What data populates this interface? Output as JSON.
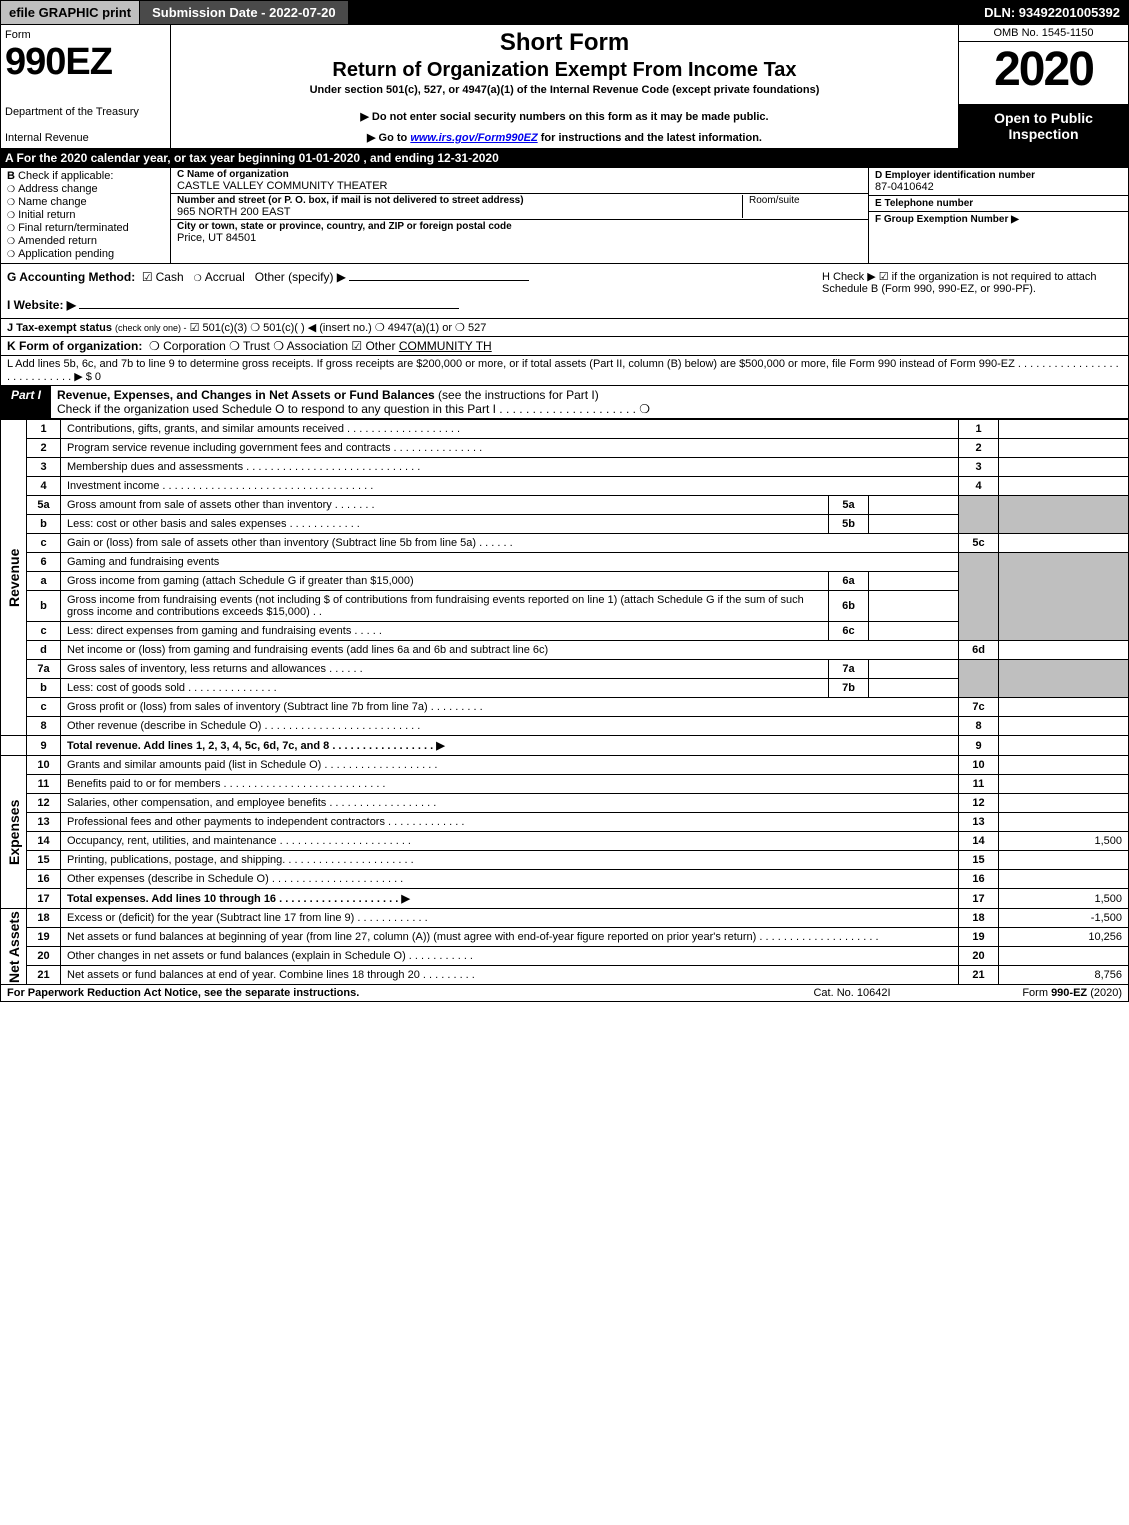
{
  "topbar": {
    "efile": "efile GRAPHIC print",
    "submission": "Submission Date - 2022-07-20",
    "dln": "DLN: 93492201005392"
  },
  "header": {
    "form_word": "Form",
    "form_number": "990EZ",
    "dept": "Department of the Treasury",
    "irs": "Internal Revenue",
    "short_form": "Short Form",
    "return_exempt": "Return of Organization Exempt From Income Tax",
    "under": "Under section 501(c), 527, or 4947(a)(1) of the Internal Revenue Code (except private foundations)",
    "ssn_warning": "▶ Do not enter social security numbers on this form as it may be made public.",
    "goto_pre": "▶ Go to ",
    "goto_link": "www.irs.gov/Form990EZ",
    "goto_post": " for instructions and the latest information.",
    "omb": "OMB No. 1545-1150",
    "year": "2020",
    "open": "Open to Public Inspection"
  },
  "row_a": "A   For the 2020 calendar year, or tax year beginning 01-01-2020 , and ending 12-31-2020",
  "section_b": {
    "label": "B",
    "check_if": "Check if applicable:",
    "opts": [
      "Address change",
      "Name change",
      "Initial return",
      "Final return/terminated",
      "Amended return",
      "Application pending"
    ]
  },
  "section_c": {
    "c_label": "C Name of organization",
    "c_name": "CASTLE VALLEY COMMUNITY THEATER",
    "addr_label": "Number and street (or P. O. box, if mail is not delivered to street address)",
    "addr_val": "965 NORTH 200 EAST",
    "room_label": "Room/suite",
    "city_label": "City or town, state or province, country, and ZIP or foreign postal code",
    "city_val": "Price, UT  84501"
  },
  "section_def": {
    "d_label": "D Employer identification number",
    "d_val": "87-0410642",
    "e_label": "E Telephone number",
    "f_label": "F Group Exemption Number   ▶"
  },
  "g": {
    "label": "G Accounting Method:",
    "cash": "Cash",
    "accrual": "Accrual",
    "other": "Other (specify) ▶",
    "h_text": "H  Check ▶ ☑ if the organization is not required to attach Schedule B (Form 990, 990-EZ, or 990-PF)."
  },
  "i": {
    "label": "I Website: ▶"
  },
  "j": {
    "label": "J Tax-exempt status",
    "sub": "(check only one) -",
    "opts": "☑ 501(c)(3)  ❍ 501(c)(  ) ◀ (insert no.)  ❍ 4947(a)(1) or  ❍ 527"
  },
  "k": {
    "label": "K Form of organization:",
    "opts": "❍ Corporation   ❍ Trust   ❍ Association   ☑ Other",
    "other_val": "COMMUNITY TH"
  },
  "l": {
    "text": "L Add lines 5b, 6c, and 7b to line 9 to determine gross receipts. If gross receipts are $200,000 or more, or if total assets (Part II, column (B) below) are $500,000 or more, file Form 990 instead of Form 990-EZ  .  .  .  .  .  .  .  .  .  .  .  .  .  .  .  .  .  .  .  .  .  .  .  .  .  .  .  .  ▶ $ 0"
  },
  "part1": {
    "label": "Part I",
    "title": "Revenue, Expenses, and Changes in Net Assets or Fund Balances",
    "title_sub": "(see the instructions for Part I)",
    "check_line": "Check if the organization used Schedule O to respond to any question in this Part I  .  .  .  .  .  .  .  .  .  .  .  .  .  .  .  .  .  .  .  .  .  ❍"
  },
  "side_labels": {
    "revenue": "Revenue",
    "expenses": "Expenses",
    "netassets": "Net Assets"
  },
  "lines": {
    "l1": {
      "no": "1",
      "desc": "Contributions, gifts, grants, and similar amounts received  .  .  .  .  .  .  .  .  .  .  .  .  .  .  .  .  .  .  .",
      "r": "1"
    },
    "l2": {
      "no": "2",
      "desc": "Program service revenue including government fees and contracts  .  .  .  .  .  .  .  .  .  .  .  .  .  .  .",
      "r": "2"
    },
    "l3": {
      "no": "3",
      "desc": "Membership dues and assessments  .  .  .  .  .  .  .  .  .  .  .  .  .  .  .  .  .  .  .  .  .  .  .  .  .  .  .  .  .",
      "r": "3"
    },
    "l4": {
      "no": "4",
      "desc": "Investment income  .  .  .  .  .  .  .  .  .  .  .  .  .  .  .  .  .  .  .  .  .  .  .  .  .  .  .  .  .  .  .  .  .  .  .",
      "r": "4"
    },
    "l5a": {
      "no": "5a",
      "desc": "Gross amount from sale of assets other than inventory  .  .  .  .  .  .  .",
      "sub": "5a"
    },
    "l5b": {
      "no": "b",
      "desc": "Less: cost or other basis and sales expenses  .  .  .  .  .  .  .  .  .  .  .  .",
      "sub": "5b"
    },
    "l5c": {
      "no": "c",
      "desc": "Gain or (loss) from sale of assets other than inventory (Subtract line 5b from line 5a)  .  .  .  .  .  .",
      "r": "5c"
    },
    "l6": {
      "no": "6",
      "desc": "Gaming and fundraising events"
    },
    "l6a": {
      "no": "a",
      "desc": "Gross income from gaming (attach Schedule G if greater than $15,000)",
      "sub": "6a"
    },
    "l6b": {
      "no": "b",
      "desc": "Gross income from fundraising events (not including $                    of contributions from fundraising events reported on line 1) (attach Schedule G if the sum of such gross income and contributions exceeds $15,000)   .  .",
      "sub": "6b"
    },
    "l6c": {
      "no": "c",
      "desc": "Less: direct expenses from gaming and fundraising events   .  .  .  .  .",
      "sub": "6c"
    },
    "l6d": {
      "no": "d",
      "desc": "Net income or (loss) from gaming and fundraising events (add lines 6a and 6b and subtract line 6c)",
      "r": "6d"
    },
    "l7a": {
      "no": "7a",
      "desc": "Gross sales of inventory, less returns and allowances  .  .  .  .  .  .",
      "sub": "7a"
    },
    "l7b": {
      "no": "b",
      "desc": "Less: cost of goods sold      .  .  .  .  .  .  .  .  .  .  .  .  .  .  .",
      "sub": "7b"
    },
    "l7c": {
      "no": "c",
      "desc": "Gross profit or (loss) from sales of inventory (Subtract line 7b from line 7a)  .  .  .  .  .  .  .  .  .",
      "r": "7c"
    },
    "l8": {
      "no": "8",
      "desc": "Other revenue (describe in Schedule O)  .  .  .  .  .  .  .  .  .  .  .  .  .  .  .  .  .  .  .  .  .  .  .  .  .  .",
      "r": "8"
    },
    "l9": {
      "no": "9",
      "desc": "Total revenue. Add lines 1, 2, 3, 4, 5c, 6d, 7c, and 8  .  .  .  .  .  .  .  .  .  .  .  .  .  .  .  .  .  ▶",
      "r": "9"
    },
    "l10": {
      "no": "10",
      "desc": "Grants and similar amounts paid (list in Schedule O)  .  .  .  .  .  .  .  .  .  .  .  .  .  .  .  .  .  .  .",
      "r": "10"
    },
    "l11": {
      "no": "11",
      "desc": "Benefits paid to or for members   .  .  .  .  .  .  .  .  .  .  .  .  .  .  .  .  .  .  .  .  .  .  .  .  .  .  .",
      "r": "11"
    },
    "l12": {
      "no": "12",
      "desc": "Salaries, other compensation, and employee benefits  .  .  .  .  .  .  .  .  .  .  .  .  .  .  .  .  .  .",
      "r": "12"
    },
    "l13": {
      "no": "13",
      "desc": "Professional fees and other payments to independent contractors  .  .  .  .  .  .  .  .  .  .  .  .  .",
      "r": "13"
    },
    "l14": {
      "no": "14",
      "desc": "Occupancy, rent, utilities, and maintenance  .  .  .  .  .  .  .  .  .  .  .  .  .  .  .  .  .  .  .  .  .  .",
      "r": "14",
      "val": "1,500"
    },
    "l15": {
      "no": "15",
      "desc": "Printing, publications, postage, and shipping.  .  .  .  .  .  .  .  .  .  .  .  .  .  .  .  .  .  .  .  .  .",
      "r": "15"
    },
    "l16": {
      "no": "16",
      "desc": "Other expenses (describe in Schedule O)   .  .  .  .  .  .  .  .  .  .  .  .  .  .  .  .  .  .  .  .  .  .",
      "r": "16"
    },
    "l17": {
      "no": "17",
      "desc": "Total expenses. Add lines 10 through 16   .  .  .  .  .  .  .  .  .  .  .  .  .  .  .  .  .  .  .  .  ▶",
      "r": "17",
      "val": "1,500"
    },
    "l18": {
      "no": "18",
      "desc": "Excess or (deficit) for the year (Subtract line 17 from line 9)   .  .  .  .  .  .  .  .  .  .  .  .",
      "r": "18",
      "val": "-1,500"
    },
    "l19": {
      "no": "19",
      "desc": "Net assets or fund balances at beginning of year (from line 27, column (A)) (must agree with end-of-year figure reported on prior year's return)  .  .  .  .  .  .  .  .  .  .  .  .  .  .  .  .  .  .  .  .",
      "r": "19",
      "val": "10,256"
    },
    "l20": {
      "no": "20",
      "desc": "Other changes in net assets or fund balances (explain in Schedule O)  .  .  .  .  .  .  .  .  .  .  .",
      "r": "20"
    },
    "l21": {
      "no": "21",
      "desc": "Net assets or fund balances at end of year. Combine lines 18 through 20  .  .  .  .  .  .  .  .  .",
      "r": "21",
      "val": "8,756"
    }
  },
  "footer": {
    "left": "For Paperwork Reduction Act Notice, see the separate instructions.",
    "mid": "Cat. No. 10642I",
    "right_pre": "Form ",
    "right_bold": "990-EZ",
    "right_post": " (2020)"
  },
  "colors": {
    "black": "#000000",
    "grey": "#bfbfbf",
    "darkgrey": "#4a4a4a",
    "white": "#ffffff"
  }
}
